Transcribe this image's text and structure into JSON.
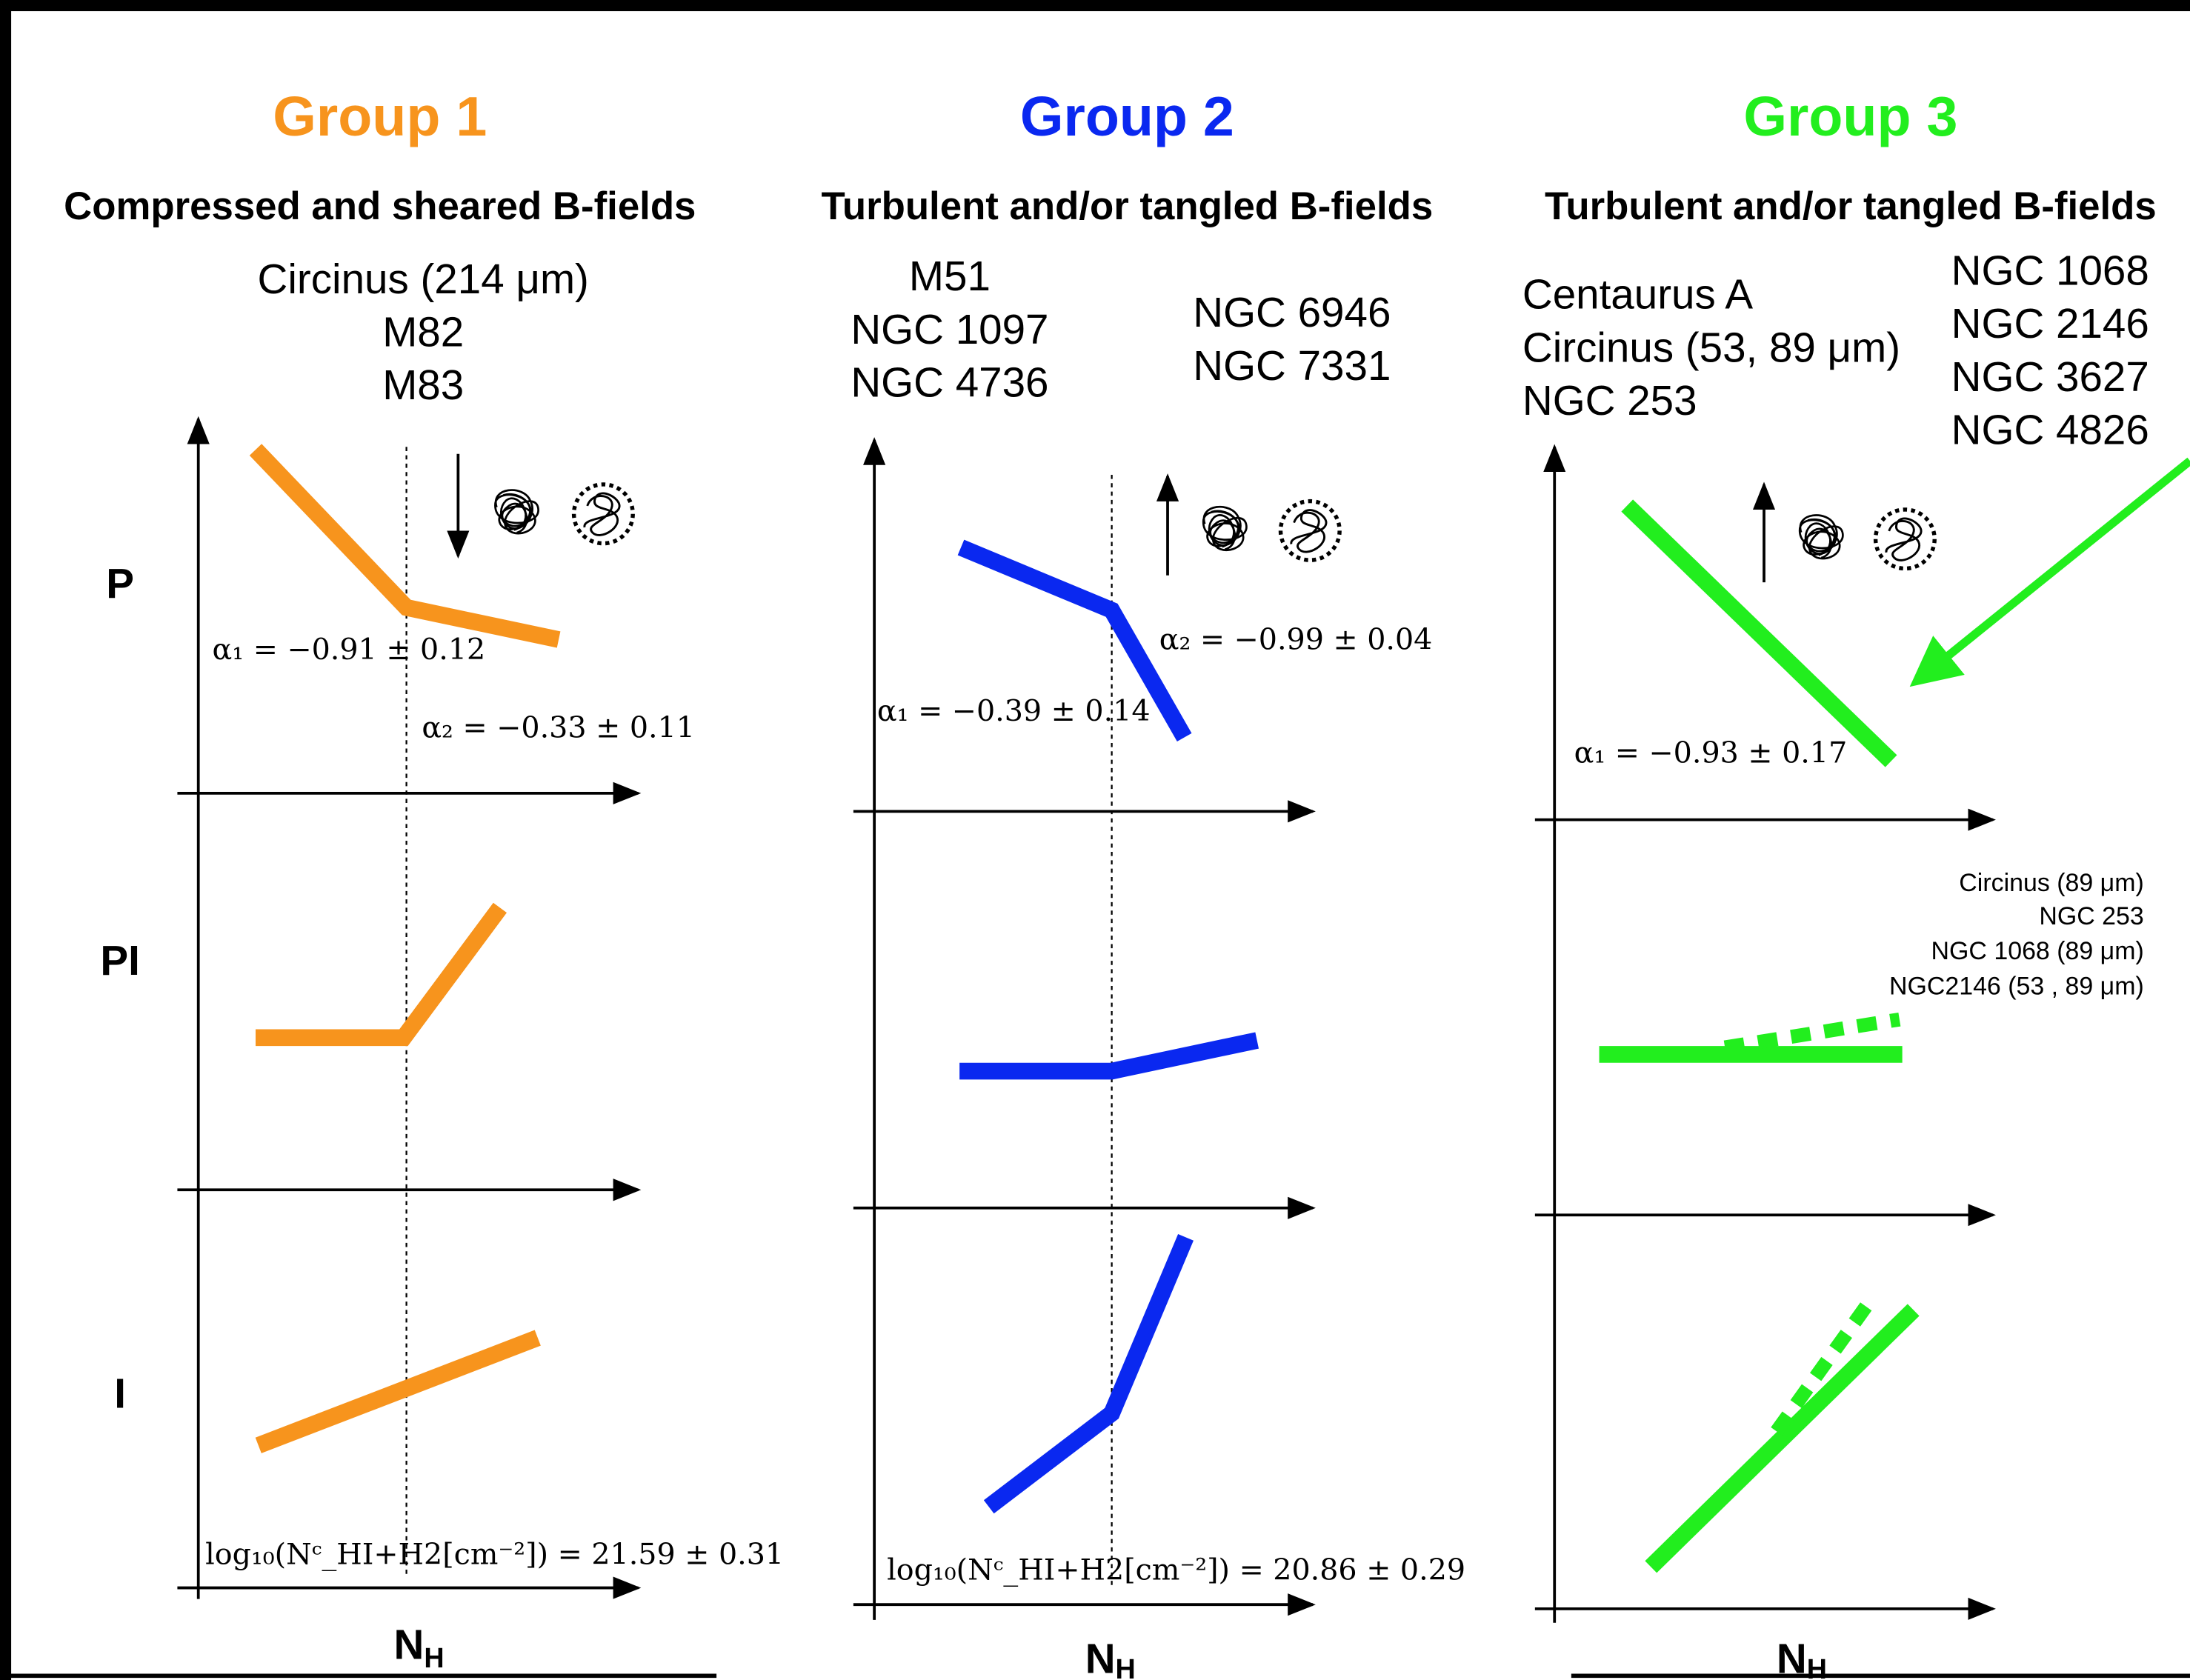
{
  "row_labels": [
    "P",
    "PI",
    "I"
  ],
  "x_axis_label": {
    "main": "N",
    "sub": "H"
  },
  "groups": [
    {
      "title": "Group 1",
      "subtitle": "Compressed and sheared B-fields",
      "sources": [
        [
          "Circinus (214 μm)",
          "M82",
          "M83"
        ]
      ],
      "annotations": [
        "α₁ = −0.91 ± 0.12",
        "α₂ = −0.33 ± 0.11",
        "log₁₀(Nᶜ_HI+H2[cm⁻²]) = 21.59 ± 0.31"
      ]
    },
    {
      "title": "Group 2",
      "subtitle": "Turbulent and/or tangled B-fields",
      "sources": [
        [
          "M51",
          "NGC 1097",
          "NGC 4736"
        ],
        [
          "NGC 6946",
          "NGC 7331"
        ]
      ],
      "annotations": [
        "α₂ = −0.99 ± 0.04",
        "α₁ = −0.39 ± 0.14",
        "log₁₀(Nᶜ_HI+H2[cm⁻²]) = 20.86 ± 0.29"
      ]
    },
    {
      "title": "Group 3",
      "subtitle": "Turbulent and/or tangled B-fields",
      "sources": [
        [
          "Centaurus A",
          "Circinus (53, 89 μm)",
          "NGC 253"
        ],
        [
          "NGC 1068",
          "NGC 2146",
          "NGC 3627",
          "NGC 4826"
        ]
      ],
      "annotations": [
        "α₁ = −0.93 ± 0.17"
      ],
      "pi_note": [
        "Circinus (89 μm)",
        "NGC 253",
        "NGC 1068 (89 μm)",
        "NGC2146 (53 , 89 μm)"
      ]
    }
  ]
}
